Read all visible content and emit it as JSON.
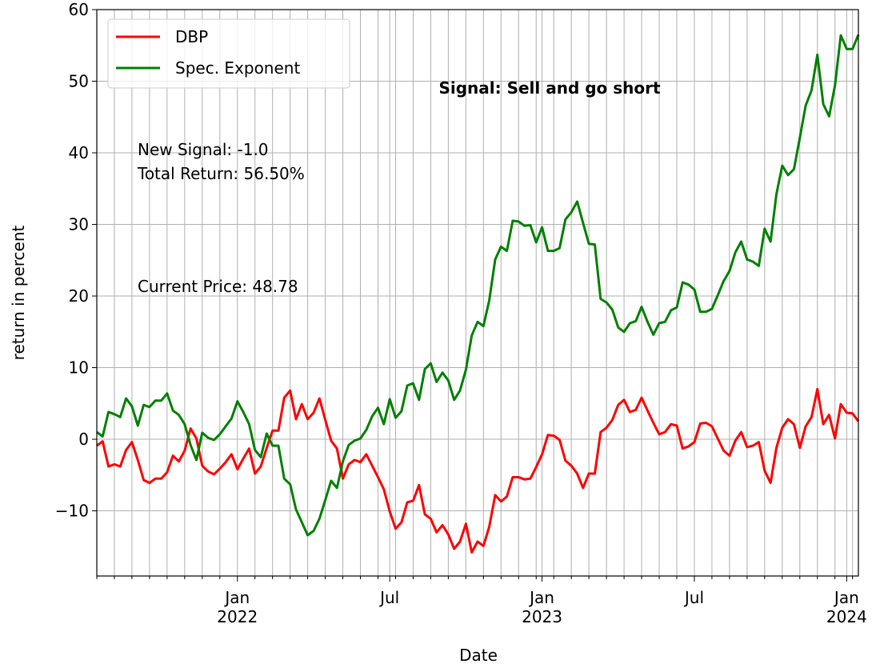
{
  "chart_data": {
    "type": "line",
    "xlabel": "Date",
    "ylabel": "return in percent",
    "annotations": [
      "Signal: Sell and go short",
      "New Signal: -1.0",
      "Total Return: 56.50%",
      "Current Price: 48.78"
    ],
    "categories": [
      null,
      null,
      null,
      null,
      null,
      null,
      null,
      null,
      null,
      null,
      null,
      null,
      null,
      null,
      null,
      null,
      null,
      null,
      null,
      null,
      null,
      null,
      null,
      null,
      "Jan\n2022",
      null,
      null,
      null,
      null,
      null,
      null,
      null,
      null,
      null,
      null,
      null,
      null,
      null,
      null,
      null,
      null,
      null,
      null,
      null,
      null,
      null,
      null,
      null,
      null,
      null,
      "Jul",
      null,
      null,
      null,
      null,
      null,
      null,
      null,
      null,
      null,
      null,
      null,
      null,
      null,
      null,
      null,
      null,
      null,
      null,
      null,
      null,
      null,
      null,
      null,
      null,
      null,
      "Jan\n2023",
      null,
      null,
      null,
      null,
      null,
      null,
      null,
      null,
      null,
      null,
      null,
      null,
      null,
      null,
      null,
      null,
      null,
      null,
      null,
      null,
      null,
      null,
      null,
      null,
      null,
      "Jul",
      null,
      null,
      null,
      null,
      null,
      null,
      null,
      null,
      null,
      null,
      null,
      null,
      null,
      null,
      null,
      null,
      null,
      null,
      null,
      null,
      null,
      null,
      null,
      null,
      null,
      "Jan\n2024",
      null,
      null
    ],
    "series": [
      {
        "name": "DBP",
        "color": "#ff0000",
        "values": [
          -0.9,
          -0.3,
          -3.8,
          -3.5,
          -3.8,
          -1.5,
          -0.4,
          -2.9,
          -5.7,
          -6.1,
          -5.5,
          -5.5,
          -4.6,
          -2.3,
          -3.1,
          -1.6,
          1.5,
          0.1,
          -3.7,
          -4.5,
          -4.9,
          -4.1,
          -3.2,
          -2.1,
          -4.2,
          -2.7,
          -1.3,
          -4.8,
          -3.8,
          -1.2,
          1.2,
          1.2,
          5.8,
          6.8,
          2.8,
          4.9,
          2.8,
          3.7,
          5.7,
          2.7,
          -0.2,
          -1.3,
          -5.5,
          -3.5,
          -2.9,
          -3.2,
          -2.1,
          -3.7,
          -5.3,
          -7.0,
          -10.1,
          -12.5,
          -11.6,
          -8.8,
          -8.6,
          -6.4,
          -10.5,
          -11.1,
          -13.0,
          -12.0,
          -13.3,
          -15.3,
          -14.3,
          -11.8,
          -15.8,
          -14.3,
          -14.9,
          -12.2,
          -7.8,
          -8.7,
          -8.0,
          -5.3,
          -5.3,
          -5.6,
          -5.5,
          -3.9,
          -2.1,
          0.6,
          0.5,
          -0.1,
          -3.0,
          -3.7,
          -4.8,
          -6.8,
          -4.8,
          -4.8,
          1.0,
          1.6,
          2.7,
          4.8,
          5.5,
          3.8,
          4.1,
          5.8,
          4.0,
          2.3,
          0.7,
          1.0,
          2.1,
          1.9,
          -1.3,
          -1.0,
          -0.4,
          2.2,
          2.3,
          1.8,
          0.1,
          -1.6,
          -2.3,
          -0.2,
          1.0,
          -1.1,
          -0.9,
          -0.4,
          -4.4,
          -6.1,
          -1.2,
          1.6,
          2.8,
          2.1,
          -1.2,
          1.8,
          3.1,
          7.0,
          2.1,
          3.4,
          0.1,
          4.9,
          3.7,
          3.6,
          2.5
        ]
      },
      {
        "name": "Spec. Exponent",
        "color": "#008000",
        "values": [
          1.0,
          0.4,
          3.8,
          3.5,
          3.1,
          5.7,
          4.6,
          1.9,
          4.8,
          4.5,
          5.4,
          5.4,
          6.4,
          4.0,
          3.4,
          2.1,
          -0.8,
          -2.9,
          0.9,
          0.2,
          -0.1,
          0.7,
          1.8,
          2.9,
          5.3,
          3.8,
          2.1,
          -1.5,
          -2.5,
          0.8,
          -0.9,
          -0.9,
          -5.5,
          -6.3,
          -9.8,
          -11.6,
          -13.4,
          -12.8,
          -11.1,
          -8.5,
          -5.8,
          -6.8,
          -3.1,
          -0.8,
          -0.2,
          0.1,
          1.3,
          3.2,
          4.4,
          2.1,
          5.6,
          3.0,
          3.9,
          7.5,
          7.8,
          5.5,
          9.8,
          10.6,
          8.0,
          9.3,
          8.2,
          5.5,
          6.8,
          9.7,
          14.5,
          16.4,
          15.8,
          19.4,
          25.1,
          26.9,
          26.3,
          30.5,
          30.4,
          29.8,
          29.9,
          27.5,
          29.6,
          26.3,
          26.3,
          26.7,
          30.7,
          31.7,
          33.2,
          30.2,
          27.3,
          27.2,
          19.6,
          19.1,
          18.1,
          15.6,
          15.0,
          16.2,
          16.5,
          18.5,
          16.4,
          14.6,
          16.2,
          16.4,
          18.0,
          18.4,
          21.9,
          21.6,
          20.9,
          17.8,
          17.8,
          18.2,
          20.1,
          22.1,
          23.5,
          26.1,
          27.6,
          25.1,
          24.8,
          24.2,
          29.4,
          27.6,
          34.2,
          38.2,
          36.9,
          37.7,
          42.1,
          46.6,
          48.7,
          53.7,
          46.8,
          45.1,
          49.4,
          56.4,
          54.5,
          54.5,
          56.5
        ]
      }
    ],
    "ylim": [
      -19.1,
      60
    ],
    "yticks": [
      {
        "value": -10,
        "label": "−10"
      },
      0,
      10,
      20,
      30,
      40,
      50,
      60
    ],
    "grid": true,
    "legend": "upper left"
  }
}
